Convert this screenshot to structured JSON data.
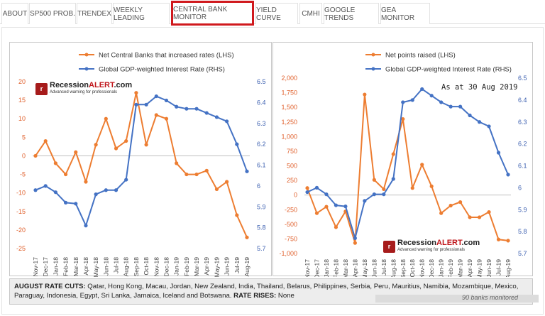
{
  "tabs": [
    {
      "label": "ABOUT",
      "active": false
    },
    {
      "label": "SP500 PROB.",
      "active": false
    },
    {
      "label": "TRENDEX",
      "active": false
    },
    {
      "label": "WEEKLY LEADING",
      "active": false
    },
    {
      "label": "CENTRAL BANK MONITOR",
      "active": true
    },
    {
      "label": "YIELD CURVE",
      "active": false
    },
    {
      "label": "CMHI",
      "active": false
    },
    {
      "label": "GOOGLE TRENDS",
      "active": false
    },
    {
      "label": "GEA MONITOR",
      "active": false
    }
  ],
  "colors": {
    "orange": "#ed7d31",
    "blue": "#4472c4",
    "axis_text": "#e0602c",
    "axis_text_right": "#3b5fb0",
    "tab_highlight": "#d0191d",
    "logo_red": "#c0151a"
  },
  "logo": {
    "name_prefix": "Recession",
    "name_suffix": "ALERT",
    "name_tld": ".com",
    "tagline": "Advanced warning for professionals",
    "badge_icon": "r"
  },
  "annotation": "As at 30 Aug 2019",
  "footer": {
    "cuts_label": "AUGUST RATE CUTS:",
    "cuts_text": " Qatar, Hong Kong, Macau, Jordan, New Zealand, India, Thailand, Belarus, Philippines, Serbia, Peru, Mauritius, Namibia, Mozambique, Mexico, Paraguay, Indonesia, Egypt, Sri Lanka, Jamaica, Iceland and Botswana.",
    "rises_label": " RATE RISES:",
    "rises_text": " None",
    "monitored": "90 banks monitored"
  },
  "chart_data": [
    {
      "type": "line",
      "categories": [
        "Nov-17",
        "Dec-17",
        "Jan-18",
        "Feb-18",
        "Mar-18",
        "Apr-18",
        "May-18",
        "Jun-18",
        "Jul-18",
        "Aug-18",
        "Sep-18",
        "Oct-18",
        "Nov-18",
        "Dec-18",
        "Jan-19",
        "Feb-19",
        "Mar-19",
        "Apr-19",
        "May-19",
        "Jun-19",
        "Jul-19",
        "Aug-19"
      ],
      "series": [
        {
          "name": "Net Central Banks that increased rates (LHS)",
          "axis": "left",
          "color": "#ed7d31",
          "values": [
            0,
            4,
            -2,
            -5,
            1,
            -7,
            3,
            10,
            2,
            4,
            17,
            3,
            11,
            10,
            -2,
            -5,
            -5,
            -4,
            -9,
            -7,
            -16,
            -22
          ]
        },
        {
          "name": "Global GDP-weighted Interest Rate (RHS)",
          "axis": "right",
          "color": "#4472c4",
          "values": [
            5.98,
            6.0,
            5.97,
            5.92,
            5.915,
            5.81,
            5.96,
            5.98,
            5.98,
            6.03,
            6.39,
            6.39,
            6.43,
            6.41,
            6.38,
            6.37,
            6.37,
            6.35,
            6.33,
            6.31,
            6.2,
            6.07
          ]
        }
      ],
      "y_left": {
        "min": -25,
        "max": 20,
        "ticks": [
          -25,
          -20,
          -15,
          -10,
          -5,
          0,
          5,
          10,
          15,
          20
        ],
        "labels": [
          "-25",
          "-20",
          "-15",
          "-10",
          "-5",
          "0",
          "5",
          "10",
          "15",
          "20"
        ]
      },
      "y_right": {
        "min": 5.7,
        "max": 6.5,
        "ticks": [
          5.7,
          5.8,
          5.9,
          6.0,
          6.1,
          6.2,
          6.3,
          6.4,
          6.5
        ],
        "labels": [
          "5.7",
          "5.8",
          "5.9",
          "6",
          "6.1",
          "6.2",
          "6.3",
          "6.4",
          "6.5"
        ]
      },
      "legend": "top-center",
      "grid": false
    },
    {
      "type": "line",
      "categories": [
        "Nov-17",
        "Dec-17",
        "Jan-18",
        "Feb-18",
        "Mar-18",
        "Apr-18",
        "May-18",
        "Jun-18",
        "Jul-18",
        "Aug-18",
        "Sep-18",
        "Oct-18",
        "Nov-18",
        "Dec-18",
        "Jan-19",
        "Feb-19",
        "Mar-19",
        "Apr-19",
        "May-19",
        "Jun-19",
        "Jul-19",
        "Aug-19"
      ],
      "series": [
        {
          "name": "Net points raised (LHS)",
          "axis": "left",
          "color": "#ed7d31",
          "values": [
            120,
            -310,
            -200,
            -550,
            -280,
            -820,
            1720,
            260,
            100,
            700,
            1300,
            120,
            520,
            150,
            -310,
            -180,
            -120,
            -380,
            -380,
            -290,
            -760,
            -780
          ]
        },
        {
          "name": "Global GDP-weighted Interest Rate (RHS)",
          "axis": "right",
          "color": "#4472c4",
          "values": [
            5.98,
            6.0,
            5.97,
            5.92,
            5.915,
            5.77,
            5.94,
            5.97,
            5.97,
            6.04,
            6.39,
            6.4,
            6.45,
            6.42,
            6.39,
            6.37,
            6.37,
            6.33,
            6.3,
            6.28,
            6.16,
            6.06
          ]
        }
      ],
      "y_left": {
        "min": -1000,
        "max": 2000,
        "ticks": [
          -1000,
          -750,
          -500,
          -250,
          0,
          250,
          500,
          750,
          1000,
          1250,
          1500,
          1750,
          2000
        ],
        "labels": [
          "-1,000",
          "-750",
          "-500",
          "-250",
          "0",
          "250",
          "500",
          "750",
          "1,000",
          "1,250",
          "1,500",
          "1,750",
          "2,000"
        ]
      },
      "y_right": {
        "min": 5.7,
        "max": 6.5,
        "ticks": [
          5.7,
          5.8,
          5.9,
          6.0,
          6.1,
          6.2,
          6.3,
          6.4,
          6.5
        ],
        "labels": [
          "5.7",
          "5.8",
          "5.9",
          "6",
          "6.1",
          "6.2",
          "6.3",
          "6.4",
          "6.5"
        ]
      },
      "legend": "top-center",
      "grid": false
    }
  ]
}
